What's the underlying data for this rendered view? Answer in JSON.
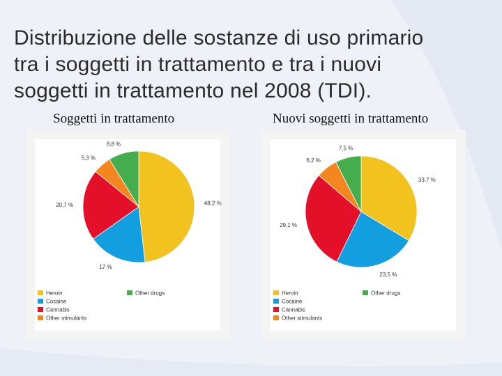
{
  "slide": {
    "title_lines": [
      "Distribuzione delle sostanze di uso primario",
      "tra i soggetti in trattamento e tra i nuovi",
      "soggetti in trattamento  nel 2008 (TDI)."
    ]
  },
  "colors": {
    "heroin": "#f2c21f",
    "cocaine": "#139ee0",
    "cannabis": "#e4102a",
    "other_stimulants": "#f3861e",
    "other_drugs": "#45ad4d"
  },
  "chart_data": [
    {
      "type": "pie",
      "title": "Soggetti in trattamento",
      "categories": [
        "Heroin",
        "Cocaine",
        "Cannabis",
        "Other stimulants",
        "Other drugs"
      ],
      "values": [
        48.2,
        17,
        20.7,
        5.3,
        8.8
      ],
      "labels": [
        "48,2 %",
        "17 %",
        "20,7 %",
        "5,3 %",
        "8,8 %"
      ],
      "legend": [
        "Heroin",
        "Other drugs",
        "Cocaine",
        "Cannabis",
        "Other stimulants"
      ],
      "legend_position": "bottom"
    },
    {
      "type": "pie",
      "title": "Nuovi soggetti in trattamento",
      "categories": [
        "Heroin",
        "Cocaine",
        "Cannabis",
        "Other stimulants",
        "Other drugs"
      ],
      "values": [
        33.7,
        23.5,
        29.1,
        6.2,
        7.5
      ],
      "labels": [
        "33.7 %",
        "23,5 %",
        "29,1 %",
        "6,2 %",
        "7,5 %"
      ],
      "legend": [
        "Heroin",
        "Other drugs",
        "Cocaine",
        "Cannabis",
        "Other stimulants"
      ],
      "legend_position": "bottom"
    }
  ]
}
